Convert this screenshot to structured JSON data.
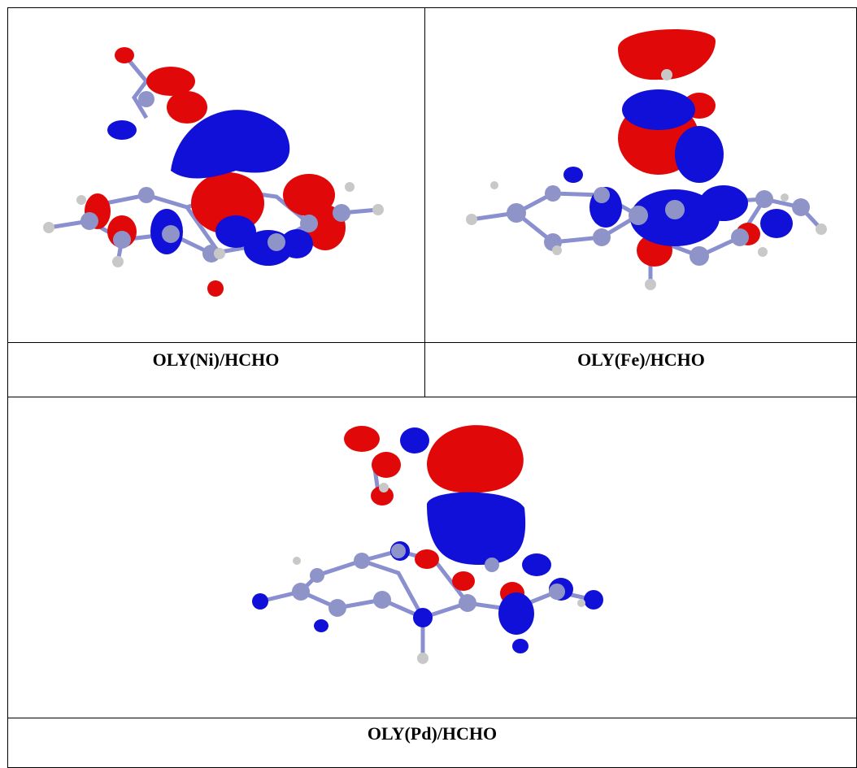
{
  "table": {
    "cells": [
      {
        "caption": "OLY(Ni)/HCHO",
        "figure_icon": "molecular-orbital-isosurface"
      },
      {
        "caption": "OLY(Fe)/HCHO",
        "figure_icon": "molecular-orbital-isosurface"
      },
      {
        "caption": "OLY(Pd)/HCHO",
        "figure_icon": "molecular-orbital-isosurface"
      }
    ]
  },
  "colors": {
    "positive_lobe": "#1010d8",
    "negative_lobe": "#e00808",
    "atom": "#8f94c8",
    "hydrogen": "#c8c8c8",
    "bond": "#8a8fd0",
    "border": "#000000"
  }
}
